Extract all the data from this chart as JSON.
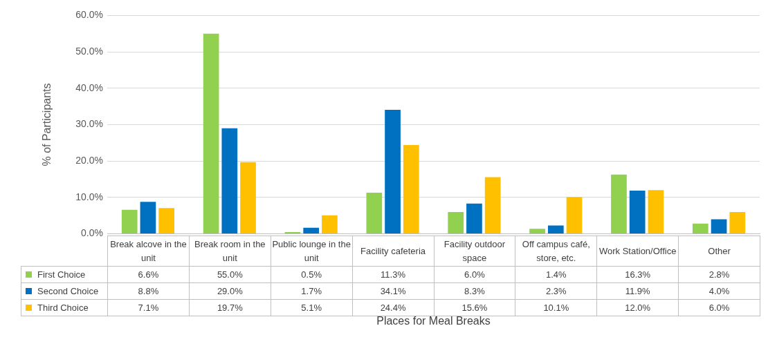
{
  "chart_data": {
    "type": "bar",
    "ylabel": "% of Participants",
    "xlabel": "Places for Meal Breaks",
    "categories": [
      "Break alcove in the unit",
      "Break room in the unit",
      "Public lounge in the unit",
      "Facility cafeteria",
      "Facility outdoor space",
      "Off campus café, store, etc.",
      "Work Station/Office",
      "Other"
    ],
    "series": [
      {
        "name": "First Choice",
        "color": "#92d050",
        "values": [
          6.6,
          55.0,
          0.5,
          11.3,
          6.0,
          1.4,
          16.3,
          2.8
        ],
        "value_labels": [
          "6.6%",
          "55.0%",
          "0.5%",
          "11.3%",
          "6.0%",
          "1.4%",
          "16.3%",
          "2.8%"
        ]
      },
      {
        "name": "Second Choice",
        "color": "#0070c0",
        "values": [
          8.8,
          29.0,
          1.7,
          34.1,
          8.3,
          2.3,
          11.9,
          4.0
        ],
        "value_labels": [
          "8.8%",
          "29.0%",
          "1.7%",
          "34.1%",
          "8.3%",
          "2.3%",
          "11.9%",
          "4.0%"
        ]
      },
      {
        "name": "Third Choice",
        "color": "#ffc000",
        "values": [
          7.1,
          19.7,
          5.1,
          24.4,
          15.6,
          10.1,
          12.0,
          6.0
        ],
        "value_labels": [
          "7.1%",
          "19.7%",
          "5.1%",
          "24.4%",
          "15.6%",
          "10.1%",
          "12.0%",
          "6.0%"
        ]
      }
    ],
    "ylim": [
      0,
      60
    ],
    "yticks": [
      {
        "value": 0,
        "label": "0.0%"
      },
      {
        "value": 10,
        "label": "10.0%"
      },
      {
        "value": 20,
        "label": "20.0%"
      },
      {
        "value": 30,
        "label": "30.0%"
      },
      {
        "value": 40,
        "label": "40.0%"
      },
      {
        "value": 50,
        "label": "50.0%"
      },
      {
        "value": 60,
        "label": "60.0%"
      }
    ],
    "grid": "y",
    "legend": "bottom"
  }
}
